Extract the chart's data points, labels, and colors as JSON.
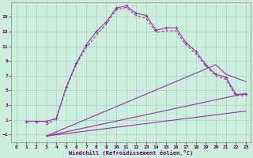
{
  "xlabel": "Windchill (Refroidissement éolien,°C)",
  "background_color": "#cceedd",
  "grid_color": "#aacccc",
  "line_color": "#993399",
  "xlim": [
    -0.5,
    23.5
  ],
  "ylim": [
    -2,
    17
  ],
  "xticks": [
    0,
    1,
    2,
    3,
    4,
    5,
    6,
    7,
    8,
    9,
    10,
    11,
    12,
    13,
    14,
    15,
    16,
    17,
    18,
    19,
    20,
    21,
    22,
    23
  ],
  "yticks": [
    -1,
    1,
    3,
    5,
    7,
    9,
    11,
    13,
    15
  ],
  "curve1_x": [
    1,
    2,
    3,
    4,
    5,
    6,
    7,
    8,
    9,
    10,
    11,
    12,
    13,
    14,
    15,
    16,
    17,
    18,
    19,
    20,
    21,
    22,
    23
  ],
  "curve1_y": [
    0.8,
    0.8,
    0.8,
    1.2,
    5.5,
    8.7,
    11.2,
    13.0,
    14.3,
    16.2,
    16.5,
    15.5,
    15.2,
    13.2,
    13.5,
    13.5,
    11.5,
    10.3,
    8.5,
    7.2,
    6.8,
    4.5,
    4.5
  ],
  "curve2_x": [
    3,
    4,
    5,
    6,
    7,
    8,
    9,
    10,
    11,
    12,
    13,
    14,
    15,
    16,
    17,
    18,
    19,
    20,
    21,
    22,
    23
  ],
  "curve2_y": [
    0.3,
    1.2,
    5.3,
    8.5,
    10.8,
    12.5,
    14.0,
    15.9,
    16.3,
    15.2,
    14.8,
    12.9,
    13.1,
    13.1,
    11.2,
    10.0,
    8.3,
    7.0,
    6.5,
    4.3,
    4.3
  ],
  "curve3_x": [
    3,
    23
  ],
  "curve3_y": [
    -1.2,
    4.6
  ],
  "curve4_x": [
    3,
    20,
    21,
    23
  ],
  "curve4_y": [
    -1.2,
    8.5,
    7.2,
    6.2
  ],
  "curve5_x": [
    3,
    23
  ],
  "curve5_y": [
    -1.2,
    2.2
  ]
}
